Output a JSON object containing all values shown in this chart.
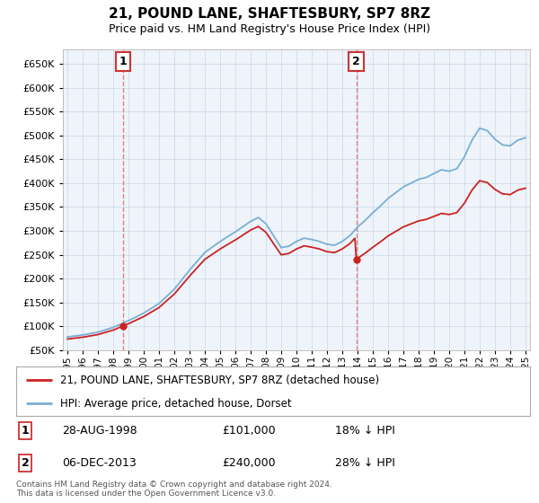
{
  "title": "21, POUND LANE, SHAFTESBURY, SP7 8RZ",
  "subtitle": "Price paid vs. HM Land Registry's House Price Index (HPI)",
  "hpi_label": "HPI: Average price, detached house, Dorset",
  "property_label": "21, POUND LANE, SHAFTESBURY, SP7 8RZ (detached house)",
  "hpi_color": "#7aaed6",
  "price_color": "#cc2222",
  "vline_color": "#e08080",
  "purchase1_date": 1998.65,
  "purchase1_price": 101000,
  "purchase2_date": 2013.92,
  "purchase2_price": 240000,
  "footer": "Contains HM Land Registry data © Crown copyright and database right 2024.\nThis data is licensed under the Open Government Licence v3.0.",
  "ylim": [
    50000,
    680000
  ],
  "yticks": [
    50000,
    100000,
    150000,
    200000,
    250000,
    300000,
    350000,
    400000,
    450000,
    500000,
    550000,
    600000,
    650000
  ],
  "chart_bg": "#eef4fa",
  "background_color": "#ffffff",
  "grid_color": "#c8d8e8"
}
